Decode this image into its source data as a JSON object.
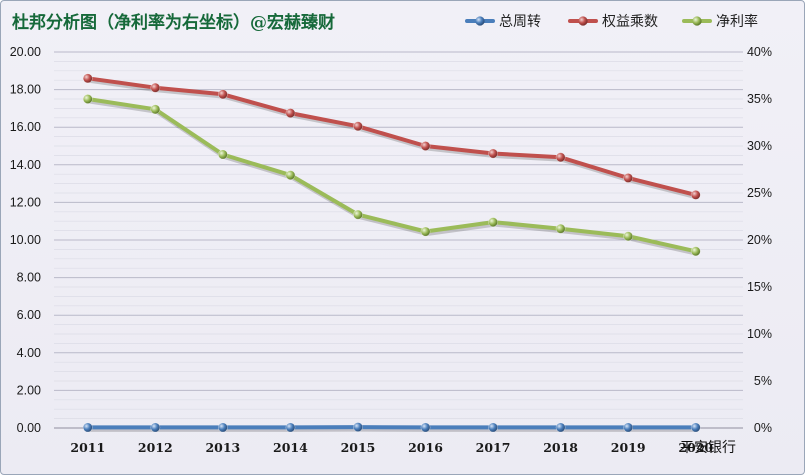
{
  "chart_data": {
    "type": "line",
    "title": "杜邦分析图（净利率为右坐标）@宏赫臻财",
    "category_label": "平安银行",
    "categories": [
      "2011",
      "2012",
      "2013",
      "2014",
      "2015",
      "2016",
      "2017",
      "2018",
      "2019",
      "2020"
    ],
    "y_left": {
      "ylim": [
        0,
        20
      ],
      "ticks": [
        "0.00",
        "2.00",
        "4.00",
        "6.00",
        "8.00",
        "10.00",
        "12.00",
        "14.00",
        "16.00",
        "18.00",
        "20.00"
      ]
    },
    "y_right": {
      "ylim": [
        0,
        40
      ],
      "ticks": [
        "0%",
        "5%",
        "10%",
        "15%",
        "20%",
        "25%",
        "30%",
        "35%",
        "40%"
      ]
    },
    "grid": true,
    "legend_position": "top-right",
    "series": [
      {
        "name": "总周转",
        "axis": "left",
        "color": "#4a7ebb",
        "values": [
          0.03,
          0.03,
          0.03,
          0.03,
          0.05,
          0.03,
          0.03,
          0.03,
          0.03,
          0.03
        ]
      },
      {
        "name": "权益乘数",
        "axis": "left",
        "color": "#c0504d",
        "values": [
          18.6,
          18.1,
          17.75,
          16.75,
          16.05,
          15.0,
          14.6,
          14.4,
          13.3,
          12.4
        ]
      },
      {
        "name": "净利率",
        "axis": "right",
        "color": "#9bbb59",
        "values": [
          35.0,
          33.9,
          29.1,
          26.9,
          22.7,
          20.9,
          21.9,
          21.2,
          20.4,
          18.8
        ]
      }
    ]
  }
}
